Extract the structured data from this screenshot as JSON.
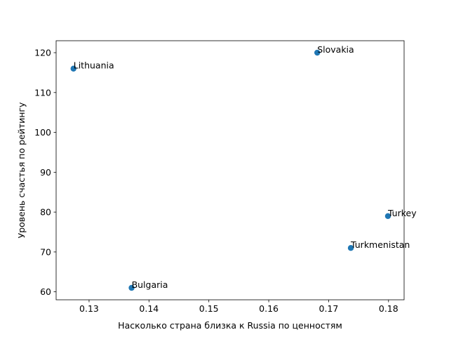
{
  "chart_data": {
    "type": "scatter",
    "xlabel": "Насколько страна близка к Russia по ценностям",
    "ylabel": "Уровень счастья по рейтингу",
    "xlim": [
      0.1245,
      0.1826
    ],
    "ylim": [
      58,
      123
    ],
    "x_ticks": [
      "0.13",
      "0.14",
      "0.15",
      "0.16",
      "0.17",
      "0.18"
    ],
    "y_ticks": [
      "60",
      "70",
      "80",
      "90",
      "100",
      "110",
      "120"
    ],
    "grid": false,
    "legend": "none",
    "marker_color": "#1f77b4",
    "points": [
      {
        "label": "Lithuania",
        "x": 0.1274,
        "y": 116
      },
      {
        "label": "Bulgaria",
        "x": 0.1371,
        "y": 61
      },
      {
        "label": "Slovakia",
        "x": 0.1681,
        "y": 120
      },
      {
        "label": "Turkmenistan",
        "x": 0.1737,
        "y": 71
      },
      {
        "label": "Turkey",
        "x": 0.1799,
        "y": 79
      }
    ]
  }
}
